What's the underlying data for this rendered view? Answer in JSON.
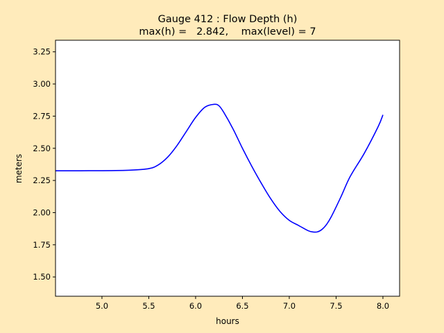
{
  "chart_data": {
    "type": "line",
    "title": "Gauge 412 : Flow Depth (h)",
    "subtitle": "max(h) =   2.842,    max(level) = 7",
    "xlabel": "hours",
    "ylabel": "meters",
    "xlim": [
      4.504,
      8.178
    ],
    "ylim": [
      1.35,
      3.34
    ],
    "xticks": [
      5.0,
      5.5,
      6.0,
      6.5,
      7.0,
      7.5,
      8.0
    ],
    "xtick_labels": [
      "5.0",
      "5.5",
      "6.0",
      "6.5",
      "7.0",
      "7.5",
      "8.0"
    ],
    "yticks": [
      1.5,
      1.75,
      2.0,
      2.25,
      2.5,
      2.75,
      3.0,
      3.25
    ],
    "ytick_labels": [
      "1.50",
      "1.75",
      "2.00",
      "2.25",
      "2.50",
      "2.75",
      "3.00",
      "3.25"
    ],
    "grid": false,
    "series": [
      {
        "name": "h",
        "color": "#0000ff",
        "x": [
          4.5,
          5.0,
          5.3,
          5.5,
          5.6,
          5.7,
          5.8,
          5.9,
          6.0,
          6.1,
          6.2,
          6.25,
          6.3,
          6.4,
          6.5,
          6.6,
          6.7,
          6.8,
          6.9,
          7.0,
          7.1,
          7.2,
          7.25,
          7.3,
          7.35,
          7.4,
          7.45,
          7.55,
          7.65,
          7.8,
          7.95,
          8.0
        ],
        "y": [
          2.325,
          2.326,
          2.33,
          2.342,
          2.37,
          2.43,
          2.52,
          2.63,
          2.74,
          2.82,
          2.842,
          2.83,
          2.78,
          2.65,
          2.5,
          2.36,
          2.23,
          2.11,
          2.01,
          1.94,
          1.9,
          1.86,
          1.85,
          1.85,
          1.87,
          1.91,
          1.97,
          2.12,
          2.28,
          2.46,
          2.67,
          2.76
        ]
      }
    ]
  }
}
